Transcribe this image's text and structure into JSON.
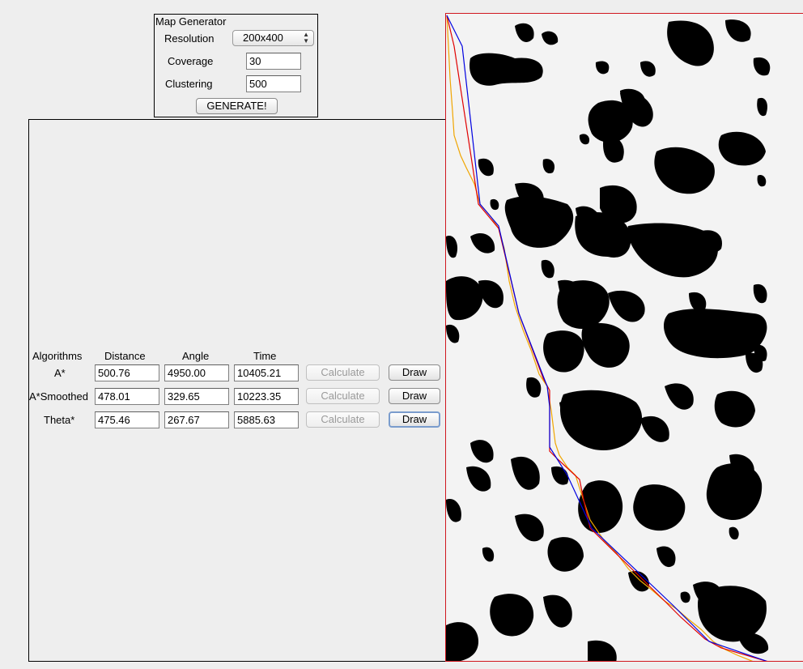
{
  "generator": {
    "title": "Map Generator",
    "resolution_label": "Resolution",
    "resolution_value": "200x400",
    "coverage_label": "Coverage",
    "coverage_value": "30",
    "clustering_label": "Clustering",
    "clustering_value": "500",
    "generate_label": "GENERATE!"
  },
  "results": {
    "headers": {
      "algorithms": "Algorithms",
      "distance": "Distance",
      "angle": "Angle",
      "time": "Time"
    },
    "rows": [
      {
        "name": "A*",
        "distance": "500.76",
        "angle": "4950.00",
        "time": "10405.21",
        "calculate": "Calculate",
        "draw": "Draw"
      },
      {
        "name": "A*Smoothed",
        "distance": "478.01",
        "angle": "329.65",
        "time": "10223.35",
        "calculate": "Calculate",
        "draw": "Draw"
      },
      {
        "name": "Theta*",
        "distance": "475.46",
        "angle": "267.67",
        "time": "5885.63",
        "calculate": "Calculate",
        "draw": "Draw"
      }
    ]
  },
  "map": {
    "border_color": "#d0171e",
    "obstacle_color": "#000000",
    "path_colors": {
      "a_star": "#f0a500",
      "a_star_smoothed": "#e00000",
      "theta_star": "#0000e0"
    }
  }
}
